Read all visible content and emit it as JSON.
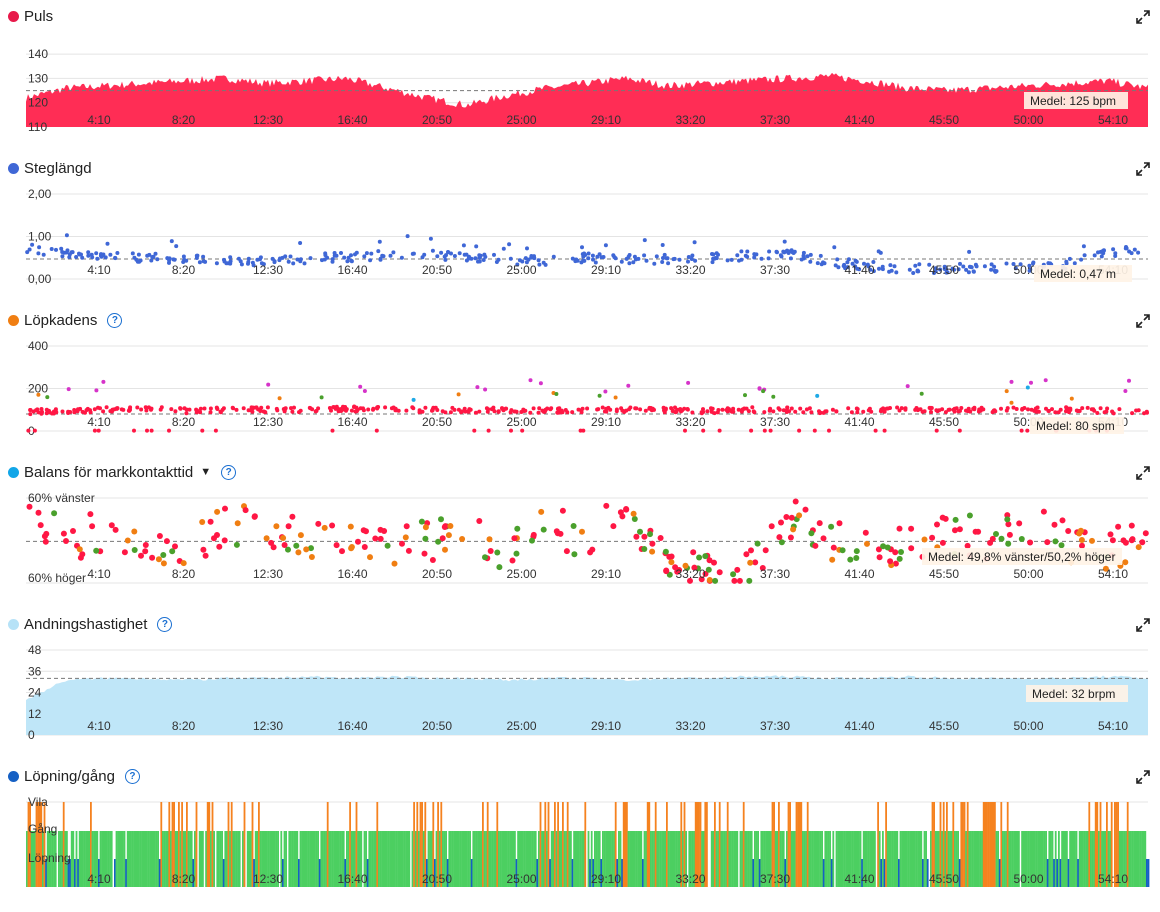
{
  "x_ticks": [
    "4:10",
    "8:20",
    "12:30",
    "16:40",
    "20:50",
    "25:00",
    "29:10",
    "33:20",
    "37:30",
    "41:40",
    "45:50",
    "50:00",
    "54:10"
  ],
  "panels": {
    "puls": {
      "title": "Puls",
      "color": "#e8194a",
      "avg_label": "Medel: 125 bpm"
    },
    "steglangd": {
      "title": "Steglängd",
      "color": "#3f67d6",
      "avg_label": "Medel: 0,47 m"
    },
    "lopkadens": {
      "title": "Löpkadens",
      "color": "#f07e12",
      "avg_label": "Medel: 80 spm"
    },
    "balans": {
      "title": "Balans för markkontakttid",
      "color": "#12a6e8",
      "avg_label": "Medel: 49,8% vänster/50,2% höger"
    },
    "andning": {
      "title": "Andningshastighet",
      "color": "#b6e2f7",
      "avg_label": "Medel: 32 brpm"
    },
    "lopning": {
      "title": "Löpning/gång",
      "color": "#1560c4"
    }
  },
  "chart_data": [
    {
      "type": "area",
      "title": "Puls",
      "x_range": [
        "0:00",
        "56:00"
      ],
      "y_ticks": [
        110,
        120,
        130,
        140
      ],
      "ylim": [
        110,
        145
      ],
      "average": 125,
      "x_minutes": [
        0,
        2,
        4,
        6,
        8,
        10,
        12,
        14,
        16,
        18,
        20,
        22,
        24,
        26,
        28,
        30,
        32,
        34,
        36,
        38,
        40,
        42,
        44,
        46,
        48,
        50,
        52,
        54,
        56
      ],
      "values": [
        122,
        126,
        127,
        128,
        129,
        130,
        128,
        129,
        130,
        126,
        122,
        119,
        123,
        126,
        128,
        130,
        127,
        128,
        129,
        130,
        131,
        129,
        126,
        125,
        126,
        127,
        128,
        129,
        126
      ],
      "color": "#ff2d55"
    },
    {
      "type": "scatter",
      "title": "Steglängd",
      "y_ticks": [
        "0,00",
        "1,00",
        "2,00"
      ],
      "ylim": [
        0,
        2
      ],
      "average": 0.47,
      "x_minutes": [
        0,
        2,
        4,
        6,
        8,
        10,
        12,
        14,
        16,
        18,
        20,
        22,
        24,
        26,
        28,
        30,
        32,
        34,
        36,
        38,
        40,
        42,
        44,
        46,
        48,
        50,
        52,
        54,
        56
      ],
      "values": [
        0.72,
        0.6,
        0.55,
        0.5,
        0.45,
        0.42,
        0.44,
        0.48,
        0.52,
        0.56,
        0.6,
        0.5,
        0.45,
        0.44,
        0.5,
        0.48,
        0.46,
        0.5,
        0.55,
        0.6,
        0.42,
        0.3,
        0.25,
        0.25,
        0.25,
        0.28,
        0.35,
        0.6,
        0.7
      ],
      "color": "#3f67d6"
    },
    {
      "type": "scatter",
      "title": "Löpkadens",
      "y_ticks": [
        0,
        200,
        400
      ],
      "ylim": [
        0,
        400
      ],
      "average": 80,
      "x_minutes": [
        0,
        2,
        4,
        6,
        8,
        10,
        12,
        14,
        16,
        18,
        20,
        22,
        24,
        26,
        28,
        30,
        32,
        34,
        36,
        38,
        40,
        42,
        44,
        46,
        48,
        50,
        52,
        54,
        56
      ],
      "values": [
        90,
        95,
        100,
        105,
        95,
        100,
        100,
        100,
        105,
        100,
        100,
        95,
        100,
        95,
        100,
        100,
        100,
        95,
        100,
        100,
        95,
        100,
        100,
        95,
        100,
        100,
        100,
        95,
        90
      ],
      "color": "#ff1744"
    },
    {
      "type": "scatter",
      "title": "Balans för markkontakttid",
      "y_ticks": [
        "60% vänster",
        "60% höger"
      ],
      "ylim": [
        60,
        40
      ],
      "average": 49.8,
      "x_minutes": [
        0,
        2,
        4,
        6,
        8,
        10,
        12,
        14,
        16,
        18,
        20,
        22,
        24,
        26,
        28,
        30,
        32,
        34,
        36,
        38,
        40,
        42,
        44,
        46,
        48,
        50,
        52,
        54,
        56
      ],
      "values": [
        55,
        50,
        52,
        50,
        48,
        54,
        52,
        50,
        52,
        48,
        50,
        52,
        48,
        54,
        50,
        58,
        44,
        42,
        42,
        56,
        50,
        50,
        48,
        52,
        50,
        54,
        50,
        48,
        50
      ],
      "color": "#ff1744"
    },
    {
      "type": "area",
      "title": "Andningshastighet",
      "y_ticks": [
        0,
        12,
        24,
        36,
        48
      ],
      "ylim": [
        0,
        48
      ],
      "average": 32,
      "x_minutes": [
        0,
        2,
        4,
        6,
        8,
        10,
        12,
        14,
        16,
        18,
        20,
        22,
        24,
        26,
        28,
        30,
        32,
        34,
        36,
        38,
        40,
        42,
        44,
        46,
        48,
        50,
        52,
        54,
        56
      ],
      "values": [
        20,
        31,
        32,
        32,
        31,
        32,
        32,
        33,
        32,
        33,
        32,
        32,
        31,
        32,
        32,
        31,
        32,
        32,
        33,
        33,
        32,
        32,
        33,
        32,
        32,
        32,
        32,
        33,
        32
      ],
      "color": "#bfe6f8"
    },
    {
      "type": "area",
      "title": "Löpning/gång",
      "y_ticks": [
        "Löpning",
        "Gång",
        "Vila"
      ],
      "categories": [
        "Löpning",
        "Gång",
        "Vila"
      ],
      "colors": {
        "Löpning": "#1560c4",
        "Gång": "#4ccf61",
        "Vila": "#f5821f"
      },
      "x_minutes": [
        0,
        2,
        4,
        6,
        8,
        10,
        12,
        14,
        16,
        18,
        20,
        22,
        24,
        26,
        28,
        30,
        32,
        34,
        36,
        38,
        40,
        42,
        44,
        46,
        48,
        50,
        52,
        54,
        56
      ],
      "states": [
        "Vila",
        "Gång",
        "Gång",
        "Gång",
        "Vila",
        "Vila",
        "Gång",
        "Gång",
        "Gång",
        "Gång",
        "Vila",
        "Gång",
        "Gång",
        "Vila",
        "Gång",
        "Vila",
        "Vila",
        "Vila",
        "Gång",
        "Vila",
        "Gång",
        "Gång",
        "Gång",
        "Vila",
        "Vila",
        "Gång",
        "Gång",
        "Vila",
        "Gång"
      ]
    }
  ]
}
